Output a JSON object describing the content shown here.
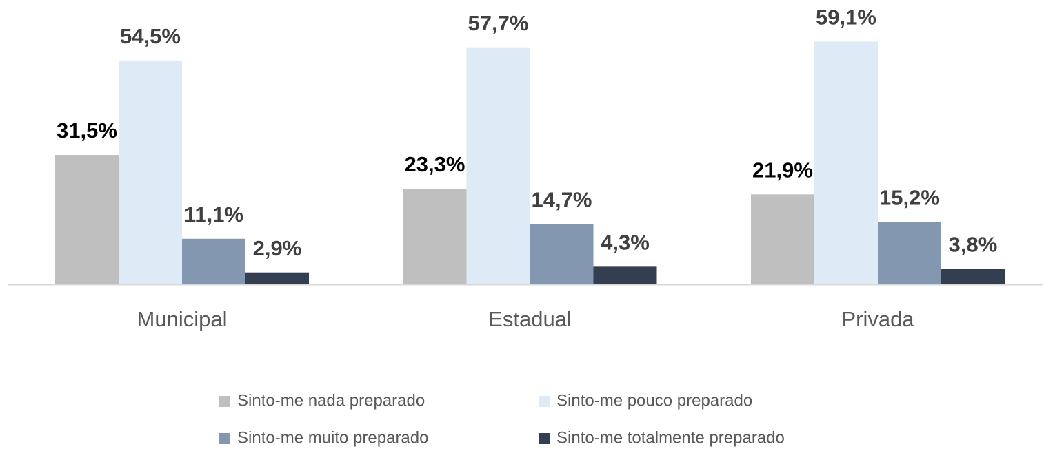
{
  "chart_data": {
    "type": "bar",
    "categories": [
      "Municipal",
      "Estadual",
      "Privada"
    ],
    "series": [
      {
        "name": "Sinto-me nada preparado",
        "color": "#bfbfbf",
        "values": [
          31.5,
          23.3,
          21.9
        ],
        "value_labels": [
          "31,5%",
          "23,3%",
          "21,9%"
        ]
      },
      {
        "name": "Sinto-me pouco preparado",
        "color": "#deeaf6",
        "values": [
          54.5,
          57.7,
          59.1
        ],
        "value_labels": [
          "54,5%",
          "57,7%",
          "59,1%"
        ]
      },
      {
        "name": "Sinto-me muito preparado",
        "color": "#8497b0",
        "values": [
          11.1,
          14.7,
          15.2
        ],
        "value_labels": [
          "11,1%",
          "14,7%",
          "15,2%"
        ]
      },
      {
        "name": "Sinto-me totalmente preparado",
        "color": "#333f50",
        "values": [
          2.9,
          4.3,
          3.8
        ],
        "value_labels": [
          "2,9%",
          "4,3%",
          "3,8%"
        ]
      }
    ],
    "ylim": [
      0,
      60
    ]
  }
}
